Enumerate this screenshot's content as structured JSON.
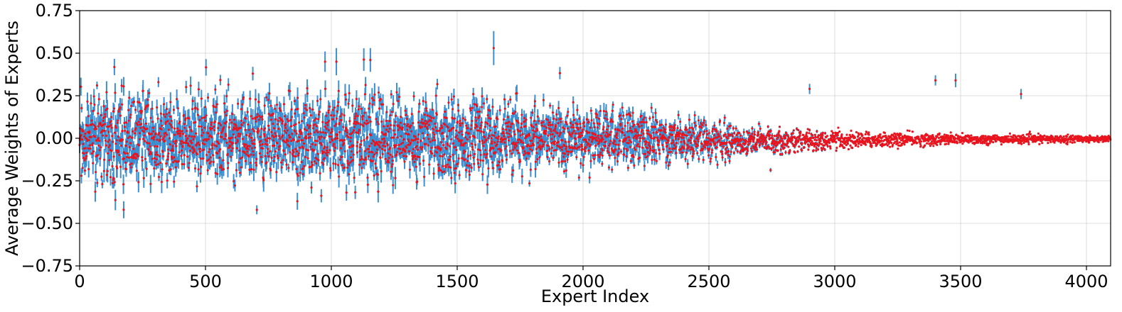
{
  "chart_data": {
    "type": "scatter",
    "title": "",
    "xlabel": "Expert Index",
    "ylabel": "Average Weights of Experts",
    "xlim": [
      0,
      4096
    ],
    "ylim": [
      -0.75,
      0.75
    ],
    "xticks": [
      0,
      500,
      1000,
      1500,
      2000,
      2500,
      3000,
      3500,
      4000
    ],
    "yticks": [
      -0.75,
      -0.5,
      -0.25,
      0.0,
      0.25,
      0.5,
      0.75
    ],
    "xtick_labels": [
      "0",
      "500",
      "1000",
      "1500",
      "2000",
      "2500",
      "3000",
      "3500",
      "4000"
    ],
    "ytick_labels": [
      "−0.75",
      "−0.50",
      "−0.25",
      "0.00",
      "0.25",
      "0.50",
      "0.75"
    ],
    "grid": true,
    "legend": "none",
    "marker_color": "#e8141e",
    "errorbar_color": "#3d8fd1",
    "num_experts": 4096,
    "series": [
      {
        "kind": "mean_with_errorbars",
        "noise_seed": 7,
        "x": [
          0,
          100,
          200,
          300,
          400,
          500,
          600,
          700,
          800,
          900,
          1000,
          1100,
          1200,
          1300,
          1400,
          1500,
          1600,
          1700,
          1800,
          1900,
          2000,
          2100,
          2200,
          2300,
          2400,
          2500,
          2600,
          2700,
          2800,
          2900,
          3000,
          3100,
          3200,
          3300,
          3400,
          3500,
          3600,
          3700,
          3800,
          3900,
          4000,
          4096
        ],
        "y_spread": [
          0.17,
          0.17,
          0.17,
          0.16,
          0.16,
          0.16,
          0.16,
          0.16,
          0.17,
          0.17,
          0.17,
          0.16,
          0.16,
          0.15,
          0.15,
          0.14,
          0.13,
          0.13,
          0.12,
          0.12,
          0.11,
          0.11,
          0.1,
          0.09,
          0.08,
          0.07,
          0.06,
          0.05,
          0.045,
          0.04,
          0.035,
          0.03,
          0.028,
          0.025,
          0.023,
          0.02,
          0.018,
          0.016,
          0.015,
          0.014,
          0.013,
          0.012
        ],
        "error_halfwidth": [
          0.045,
          0.045,
          0.045,
          0.045,
          0.045,
          0.045,
          0.045,
          0.045,
          0.045,
          0.045,
          0.045,
          0.045,
          0.045,
          0.043,
          0.042,
          0.04,
          0.038,
          0.036,
          0.035,
          0.034,
          0.033,
          0.032,
          0.03,
          0.028,
          0.025,
          0.02,
          0.016,
          0.013,
          0.01,
          0.008,
          0.006,
          0.005,
          0.004,
          0.003,
          0.0025,
          0.002,
          0.002,
          0.0018,
          0.0016,
          0.0015,
          0.0015,
          0.0015
        ]
      }
    ],
    "annotated_points": [
      {
        "x": 175,
        "y": -0.42,
        "err": 0.05
      },
      {
        "x": 688,
        "y": 0.38,
        "err": 0.04
      },
      {
        "x": 975,
        "y": 0.45,
        "err": 0.06
      },
      {
        "x": 1020,
        "y": 0.45,
        "err": 0.08
      },
      {
        "x": 1155,
        "y": 0.46,
        "err": 0.07
      },
      {
        "x": 1645,
        "y": 0.53,
        "err": 0.1
      },
      {
        "x": 865,
        "y": -0.37,
        "err": 0.05
      },
      {
        "x": 2900,
        "y": 0.29,
        "err": 0.03
      },
      {
        "x": 3400,
        "y": 0.34,
        "err": 0.03
      },
      {
        "x": 3480,
        "y": 0.34,
        "err": 0.04
      },
      {
        "x": 3740,
        "y": 0.26,
        "err": 0.03
      }
    ]
  }
}
